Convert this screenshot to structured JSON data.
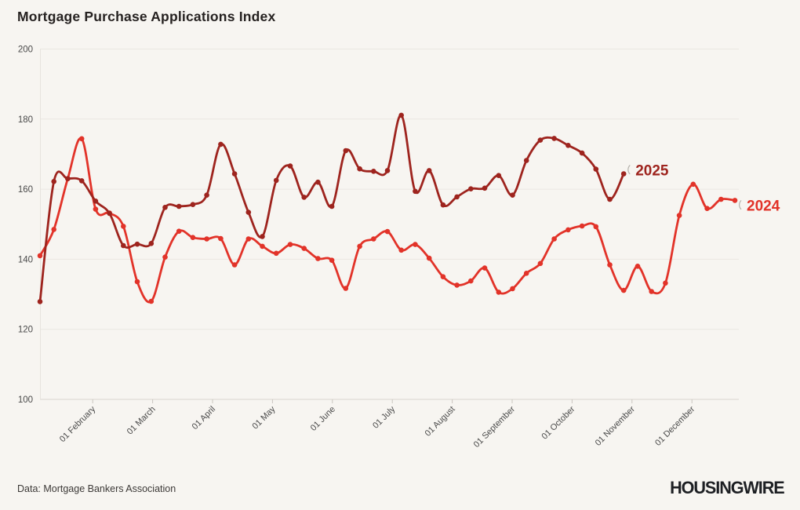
{
  "title": "Mortgage Purchase Applications Index",
  "footer": {
    "source": "Data: Mortgage Bankers Association",
    "logo": "HOUSINGWIRE"
  },
  "colors": {
    "background": "#f7f5f1",
    "grid": "#eae7e2",
    "baseline": "#d9d5cf",
    "axis": "#e6e3dd",
    "tick_text": "#4a4a4a",
    "series_2024": "#e23329",
    "series_2025": "#9e241e"
  },
  "chart_data": {
    "type": "line",
    "title": "Mortgage Purchase Applications Index",
    "x_unit": "weekly observations, Jan through Dec",
    "xlabel": "",
    "ylabel": "",
    "ylim": [
      100,
      200
    ],
    "y_ticks": [
      100,
      120,
      140,
      160,
      180,
      200
    ],
    "grid": true,
    "month_labels": [
      "01 February",
      "01 March",
      "01 April",
      "01 May",
      "01 June",
      "01 July",
      "01 August",
      "01 September",
      "01 October",
      "01 November",
      "01 December"
    ],
    "legend_position": "end-of-line labels",
    "series": [
      {
        "name": "2024",
        "label": "2024",
        "color": "#e23329",
        "values": [
          141,
          148.5,
          163,
          174.4,
          154.3,
          153.2,
          149.4,
          133.6,
          128,
          140.6,
          148,
          146.2,
          145.8,
          145.9,
          138.4,
          145.8,
          143.7,
          141.7,
          144.2,
          143.1,
          140.2,
          139.7,
          131.7,
          143.7,
          145.8,
          147.9,
          142.6,
          144.2,
          140.3,
          135,
          132.6,
          133.8,
          137.5,
          130.6,
          131.6,
          136,
          138.8,
          145.8,
          148.4,
          149.5,
          149.3,
          138.4,
          131.1,
          138,
          130.8,
          133.2,
          152.5,
          161.4,
          154.5,
          157.1,
          156.8
        ]
      },
      {
        "name": "2025",
        "label": "2025",
        "color": "#9e241e",
        "values": [
          127.9,
          162.2,
          163,
          162.4,
          156.6,
          153.1,
          143.9,
          144.3,
          144.5,
          154.8,
          155.1,
          155.6,
          158.3,
          172.8,
          164.4,
          153.4,
          146.5,
          162.5,
          166.6,
          157.7,
          162,
          155.1,
          171,
          165.8,
          165.1,
          165.3,
          181.1,
          159.4,
          165.3,
          155.5,
          157.8,
          160.1,
          160.3,
          163.9,
          158.3,
          168.2,
          174,
          174.5,
          172.5,
          170.3,
          165.7,
          157.1,
          164.4
        ]
      }
    ]
  }
}
